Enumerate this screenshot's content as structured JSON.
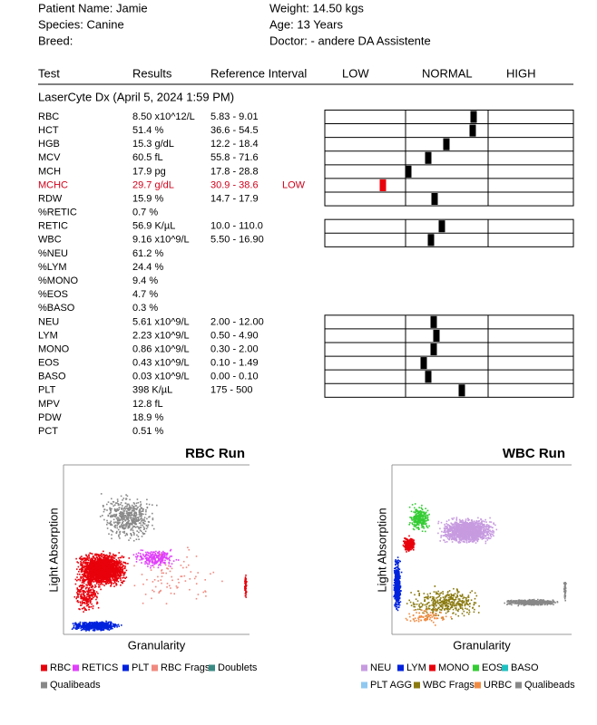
{
  "header": {
    "patient_name": "Patient Name: Jamie",
    "weight": "Weight: 14.50 kgs",
    "species": "Species: Canine",
    "age": "Age: 13 Years",
    "breed": "Breed:",
    "doctor": "Doctor: - andere DA Assistente"
  },
  "table": {
    "columns": [
      "Test",
      "Results",
      "Reference Interval",
      "LOW",
      "NORMAL",
      "HIGH"
    ],
    "section": "LaserCyte Dx (April 5, 2024 1:59 PM)",
    "rows": [
      [
        "RBC",
        "8.50 x10^12/L",
        "5.83 - 9.01",
        null
      ],
      [
        "HCT",
        "51.4 %",
        "36.6 - 54.5",
        null
      ],
      [
        "HGB",
        "15.3 g/dL",
        "12.2 - 18.4",
        null
      ],
      [
        "MCV",
        "60.5 fL",
        "55.8 - 71.6",
        null
      ],
      [
        "MCH",
        "17.9 pg",
        "17.8 - 28.8",
        null
      ],
      [
        "MCHC",
        "29.7 g/dL",
        "30.9 - 38.6",
        "LOW"
      ],
      [
        "RDW",
        "15.9 %",
        "14.7 - 17.9",
        null
      ],
      [
        "%RETIC",
        "0.7 %",
        null,
        null
      ],
      [
        "RETIC",
        "56.9 K/µL",
        "10.0 - 110.0",
        null
      ],
      [
        "WBC",
        "9.16 x10^9/L",
        "5.50 - 16.90",
        null
      ],
      [
        "%NEU",
        "61.2 %",
        null,
        null
      ],
      [
        "%LYM",
        "24.4 %",
        null,
        null
      ],
      [
        "%MONO",
        "9.4 %",
        null,
        null
      ],
      [
        "%EOS",
        "4.7 %",
        null,
        null
      ],
      [
        "%BASO",
        "0.3 %",
        null,
        null
      ],
      [
        "NEU",
        "5.61 x10^9/L",
        "2.00 - 12.00",
        null
      ],
      [
        "LYM",
        "2.23 x10^9/L",
        "0.50 - 4.90",
        null
      ],
      [
        "MONO",
        "0.86 x10^9/L",
        "0.30 - 2.00",
        null
      ],
      [
        "EOS",
        "0.43 x10^9/L",
        "0.10 - 1.49",
        null
      ],
      [
        "BASO",
        "0.03 x10^9/L",
        "0.00 - 0.10",
        null
      ],
      [
        "PLT",
        "398 K/µL",
        "175 - 500",
        null
      ],
      [
        "MPV",
        "12.8 fL",
        null,
        null
      ],
      [
        "PDW",
        "18.9 %",
        null,
        null
      ],
      [
        "PCT",
        "0.51 %",
        null,
        null
      ]
    ]
  },
  "plots": [
    {
      "title": "RBC Run",
      "y_label": "Light Absorption",
      "x_label": "Granularity",
      "legend": [
        {
          "label": "RBC",
          "color": "#e8000b"
        },
        {
          "label": "RETICS",
          "color": "#e040fb"
        },
        {
          "label": "PLT",
          "color": "#0022dd"
        },
        {
          "label": "RBC Frags",
          "color": "#f08a80"
        },
        {
          "label": "Doublets",
          "color": "#3a8a84"
        },
        {
          "label": "Qualibeads",
          "color": "#888888"
        }
      ]
    },
    {
      "title": "WBC Run",
      "y_label": "Light Absorption",
      "x_label": "Granularity",
      "legend": [
        {
          "label": "NEU",
          "color": "#c79be0"
        },
        {
          "label": "LYM",
          "color": "#0022dd"
        },
        {
          "label": "MONO",
          "color": "#e8000b"
        },
        {
          "label": "EOS",
          "color": "#33cc33"
        },
        {
          "label": "BASO",
          "color": "#20c0c0"
        },
        {
          "label": "PLT AGG",
          "color": "#8fc8f0"
        },
        {
          "label": "WBC Frags",
          "color": "#8a7a10"
        },
        {
          "label": "URBC",
          "color": "#f08a40"
        },
        {
          "label": "Qualibeads",
          "color": "#888888"
        }
      ]
    }
  ]
}
